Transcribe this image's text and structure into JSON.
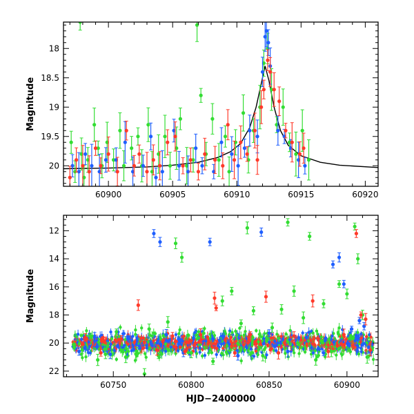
{
  "colors": {
    "green": "#33dd33",
    "blue": "#1f5fff",
    "red": "#ff3a2a",
    "axis": "#000000",
    "model": "#000000"
  },
  "chart_data": [
    {
      "type": "scatter",
      "title": "",
      "xlabel": "",
      "ylabel": "Magnitude",
      "xlim": [
        60896.5,
        60921
      ],
      "ylim": [
        20.35,
        17.55
      ],
      "y_inverted": true,
      "xticks": [
        60900,
        60905,
        60910,
        60915,
        60920
      ],
      "xtick_labels": [
        "60900",
        "60905",
        "60910",
        "60915",
        "60920"
      ],
      "yticks": [
        18,
        18.5,
        19,
        19.5,
        20
      ],
      "ytick_labels": [
        "18",
        "18.5",
        "19",
        "19.5",
        "20"
      ],
      "grid": false,
      "legend": "none",
      "series": [
        {
          "color": "green",
          "points": [
            [
              60897.1,
              19.6
            ],
            [
              60897.4,
              20.1
            ],
            [
              60897.9,
              19.8
            ],
            [
              60898.1,
              20.2
            ],
            [
              60898.4,
              19.9
            ],
            [
              60898.9,
              19.3
            ],
            [
              60899.2,
              19.7
            ],
            [
              60899.5,
              20.0
            ],
            [
              60899.9,
              19.6
            ],
            [
              60900.4,
              19.9
            ],
            [
              60900.9,
              19.4
            ],
            [
              60901.2,
              20.0
            ],
            [
              60901.8,
              19.7
            ],
            [
              60902.3,
              19.5
            ],
            [
              60902.6,
              20.0
            ],
            [
              60903.1,
              19.3
            ],
            [
              60903.4,
              20.1
            ],
            [
              60903.9,
              19.8
            ],
            [
              60904.4,
              19.5
            ],
            [
              60904.8,
              20.0
            ],
            [
              60905.3,
              19.7
            ],
            [
              60905.6,
              19.2
            ],
            [
              60906.1,
              20.0
            ],
            [
              60906.6,
              19.9
            ],
            [
              60906.9,
              17.6
            ],
            [
              60907.2,
              18.8
            ],
            [
              60907.6,
              19.8
            ],
            [
              60908.1,
              19.2
            ],
            [
              60908.6,
              19.9
            ],
            [
              60909.1,
              19.5
            ],
            [
              60909.4,
              20.1
            ],
            [
              60909.9,
              19.6
            ],
            [
              60910.5,
              19.1
            ],
            [
              60910.9,
              19.9
            ],
            [
              60911.3,
              19.4
            ],
            [
              60911.8,
              19.0
            ],
            [
              60912.1,
              18.25
            ],
            [
              60912.4,
              18.0
            ],
            [
              60912.7,
              18.7
            ],
            [
              60913.1,
              19.3
            ],
            [
              60913.6,
              19.0
            ],
            [
              60914.1,
              19.6
            ],
            [
              60914.6,
              19.8
            ],
            [
              60915.1,
              19.4
            ],
            [
              60915.6,
              19.9
            ],
            [
              60897.8,
              17.55
            ]
          ]
        },
        {
          "color": "blue",
          "points": [
            [
              60897.2,
              20.0
            ],
            [
              60897.7,
              20.1
            ],
            [
              60898.2,
              19.8
            ],
            [
              60898.7,
              20.0
            ],
            [
              60899.3,
              20.1
            ],
            [
              60899.8,
              19.9
            ],
            [
              60900.6,
              19.9
            ],
            [
              60901.3,
              19.6
            ],
            [
              60901.9,
              20.1
            ],
            [
              60902.7,
              20.0
            ],
            [
              60903.3,
              19.5
            ],
            [
              60903.7,
              20.2
            ],
            [
              60904.2,
              20.1
            ],
            [
              60905.1,
              19.4
            ],
            [
              60905.5,
              20.0
            ],
            [
              60906.2,
              20.1
            ],
            [
              60906.8,
              19.7
            ],
            [
              60907.3,
              20.0
            ],
            [
              60908.2,
              20.1
            ],
            [
              60908.8,
              19.6
            ],
            [
              60909.6,
              19.8
            ],
            [
              60910.1,
              20.0
            ],
            [
              60910.6,
              19.7
            ],
            [
              60911.0,
              19.4
            ],
            [
              60911.6,
              19.5
            ],
            [
              60912.0,
              18.4
            ],
            [
              60912.2,
              17.8
            ],
            [
              60912.3,
              17.7
            ],
            [
              60912.45,
              17.9
            ],
            [
              60912.6,
              18.3
            ],
            [
              60913.2,
              19.4
            ],
            [
              60913.7,
              19.5
            ],
            [
              60914.2,
              19.7
            ],
            [
              60914.8,
              19.9
            ],
            [
              60915.3,
              20.0
            ]
          ]
        },
        {
          "color": "red",
          "points": [
            [
              60897.0,
              20.2
            ],
            [
              60897.5,
              19.9
            ],
            [
              60898.0,
              20.0
            ],
            [
              60898.5,
              20.1
            ],
            [
              60899.0,
              19.7
            ],
            [
              60899.4,
              20.0
            ],
            [
              60900.0,
              19.8
            ],
            [
              60900.7,
              20.1
            ],
            [
              60901.4,
              19.4
            ],
            [
              60902.0,
              20.0
            ],
            [
              60902.4,
              19.8
            ],
            [
              60903.0,
              20.1
            ],
            [
              60903.5,
              19.9
            ],
            [
              60904.0,
              20.0
            ],
            [
              60904.6,
              19.6
            ],
            [
              60905.2,
              19.5
            ],
            [
              60905.8,
              20.0
            ],
            [
              60906.4,
              19.9
            ],
            [
              60907.0,
              20.1
            ],
            [
              60907.5,
              19.8
            ],
            [
              60908.3,
              19.9
            ],
            [
              60908.9,
              20.0
            ],
            [
              60909.3,
              19.3
            ],
            [
              60909.8,
              19.9
            ],
            [
              60910.3,
              19.6
            ],
            [
              60910.8,
              19.8
            ],
            [
              60911.4,
              19.4
            ],
            [
              60911.9,
              19.0
            ],
            [
              60912.1,
              18.7
            ],
            [
              60912.4,
              18.2
            ],
            [
              60912.6,
              18.4
            ],
            [
              60912.9,
              18.7
            ],
            [
              60913.3,
              18.9
            ],
            [
              60913.8,
              19.4
            ],
            [
              60914.3,
              19.6
            ],
            [
              60914.9,
              19.8
            ],
            [
              60915.2,
              19.7
            ],
            [
              60911.6,
              19.9
            ]
          ]
        }
      ],
      "model_curve": {
        "x": [
          60896.5,
          60900,
          60903,
          60905,
          60907,
          60908.5,
          60909.5,
          60910.3,
          60911,
          60911.5,
          60911.9,
          60912.2,
          60912.5,
          60912.9,
          60913.4,
          60914,
          60915,
          60916.5,
          60918,
          60921
        ],
        "y": [
          20.05,
          20.04,
          20.02,
          19.99,
          19.94,
          19.86,
          19.76,
          19.62,
          19.35,
          19.0,
          18.6,
          18.3,
          18.55,
          19.0,
          19.4,
          19.65,
          19.83,
          19.94,
          19.99,
          20.03
        ]
      }
    },
    {
      "type": "scatter",
      "title": "",
      "xlabel": "HJD−2400000",
      "ylabel": "Magnitude",
      "xlim": [
        60718,
        60920
      ],
      "ylim": [
        22.4,
        10.9
      ],
      "y_inverted": true,
      "xticks": [
        60750,
        60800,
        60850,
        60900
      ],
      "xtick_labels": [
        "60750",
        "60800",
        "60850",
        "60900"
      ],
      "yticks": [
        12,
        14,
        16,
        18,
        20,
        22
      ],
      "ytick_labels": [
        "12",
        "14",
        "16",
        "18",
        "20",
        "22"
      ],
      "grid": false,
      "legend": "none",
      "dense_band": {
        "x_range": [
          60724,
          60917
        ],
        "center_y": 20.0,
        "spread_y": 0.45
      },
      "series": [
        {
          "color": "green",
          "points": [
            [
              60730,
              20.5
            ],
            [
              60735,
              19.5
            ],
            [
              60740,
              21.2
            ],
            [
              60745,
              20.8
            ],
            [
              60752,
              19.2
            ],
            [
              60758,
              21.0
            ],
            [
              60765,
              20.6
            ],
            [
              60770,
              22.2
            ],
            [
              60773,
              19.0
            ],
            [
              60779,
              20.9
            ],
            [
              60785,
              18.5
            ],
            [
              60790,
              12.9
            ],
            [
              60794,
              13.9
            ],
            [
              60800,
              20.7
            ],
            [
              60808,
              19.3
            ],
            [
              60814,
              21.3
            ],
            [
              60820,
              17.0
            ],
            [
              60826,
              16.3
            ],
            [
              60832,
              18.6
            ],
            [
              60836,
              11.8
            ],
            [
              60840,
              17.7
            ],
            [
              60846,
              20.9
            ],
            [
              60852,
              18.9
            ],
            [
              60858,
              17.6
            ],
            [
              60862,
              11.4
            ],
            [
              60866,
              16.3
            ],
            [
              60872,
              18.2
            ],
            [
              60876,
              12.4
            ],
            [
              60880,
              21.2
            ],
            [
              60885,
              17.2
            ],
            [
              60890,
              20.6
            ],
            [
              60895,
              15.8
            ],
            [
              60900,
              16.5
            ],
            [
              60905,
              11.7
            ],
            [
              60907,
              14.0
            ],
            [
              60910,
              18.0
            ],
            [
              60913,
              21.0
            ]
          ]
        },
        {
          "color": "blue",
          "points": [
            [
              60728,
              20.6
            ],
            [
              60738,
              19.6
            ],
            [
              60748,
              20.8
            ],
            [
              60760,
              19.7
            ],
            [
              60776,
              12.2
            ],
            [
              60780,
              12.8
            ],
            [
              60784,
              19.4
            ],
            [
              60795,
              20.7
            ],
            [
              60812,
              12.8
            ],
            [
              60820,
              19.5
            ],
            [
              60830,
              20.9
            ],
            [
              60845,
              12.1
            ],
            [
              60850,
              19.3
            ],
            [
              60862,
              20.6
            ],
            [
              60874,
              19.6
            ],
            [
              60885,
              20.7
            ],
            [
              60891,
              14.4
            ],
            [
              60895,
              13.9
            ],
            [
              60898,
              15.8
            ],
            [
              60903,
              19.0
            ],
            [
              60908,
              18.4
            ],
            [
              60911,
              18.8
            ],
            [
              60914,
              20.3
            ]
          ]
        },
        {
          "color": "red",
          "points": [
            [
              60732,
              19.6
            ],
            [
              60742,
              20.7
            ],
            [
              60755,
              19.7
            ],
            [
              60766,
              17.3
            ],
            [
              60778,
              20.5
            ],
            [
              60788,
              19.5
            ],
            [
              60796,
              20.6
            ],
            [
              60806,
              19.4
            ],
            [
              60815,
              16.8
            ],
            [
              60816,
              17.5
            ],
            [
              60828,
              20.7
            ],
            [
              60838,
              19.4
            ],
            [
              60848,
              16.7
            ],
            [
              60856,
              20.7
            ],
            [
              60866,
              19.5
            ],
            [
              60878,
              17.0
            ],
            [
              60888,
              20.6
            ],
            [
              60898,
              19.4
            ],
            [
              60906,
              12.2
            ],
            [
              60909,
              18.0
            ],
            [
              60912,
              18.3
            ],
            [
              60915,
              20.5
            ]
          ]
        }
      ]
    }
  ]
}
